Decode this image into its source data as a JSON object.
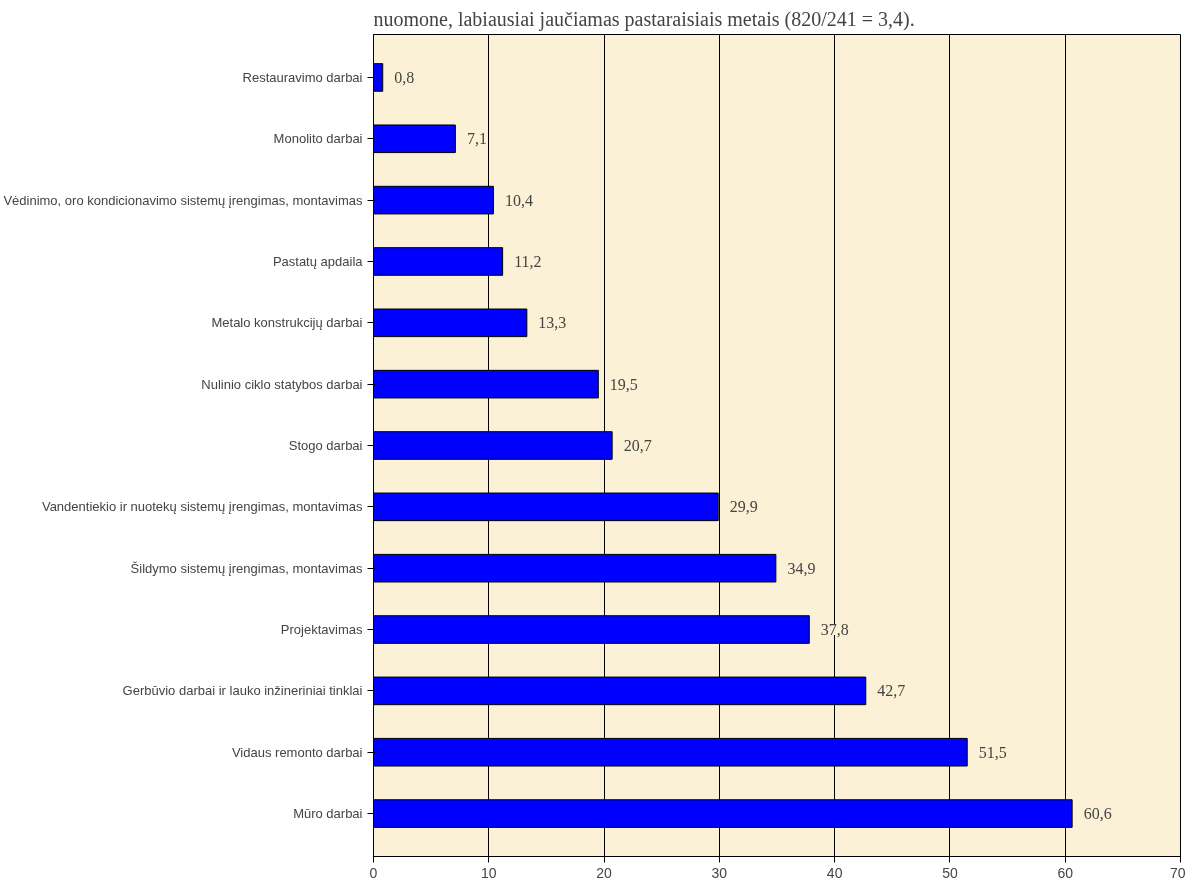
{
  "chart_data": {
    "type": "bar",
    "orientation": "horizontal",
    "title": "nuomone, labiausiai jaučiamas pastaraisiais metais (820/241 = 3,4).",
    "categories": [
      "Restauravimo darbai",
      "Monolito darbai",
      "Vėdinimo, oro kondicionavimo sistemų įrengimas, montavimas",
      "Pastatų apdaila",
      "Metalo konstrukcijų darbai",
      "Nulinio ciklo statybos darbai",
      "Stogo darbai",
      "Vandentiekio ir nuotekų sistemų įrengimas, montavimas",
      "Šildymo sistemų įrengimas, montavimas",
      "Projektavimas",
      "Gerbūvio darbai ir lauko inžineriniai tinklai",
      "Vidaus remonto darbai",
      "Mūro darbai"
    ],
    "values": [
      0.8,
      7.1,
      10.4,
      11.2,
      13.3,
      19.5,
      20.7,
      29.9,
      34.9,
      37.8,
      42.7,
      51.5,
      60.6
    ],
    "value_labels": [
      "0,8",
      "7,1",
      "10,4",
      "11,2",
      "13,3",
      "19,5",
      "20,7",
      "29,9",
      "34,9",
      "37,8",
      "42,7",
      "51,5",
      "60,6"
    ],
    "color": "#0000ff",
    "xlim": [
      0,
      70
    ],
    "xticks": [
      0,
      10,
      20,
      30,
      40,
      50,
      60,
      70
    ],
    "grid": "x"
  }
}
